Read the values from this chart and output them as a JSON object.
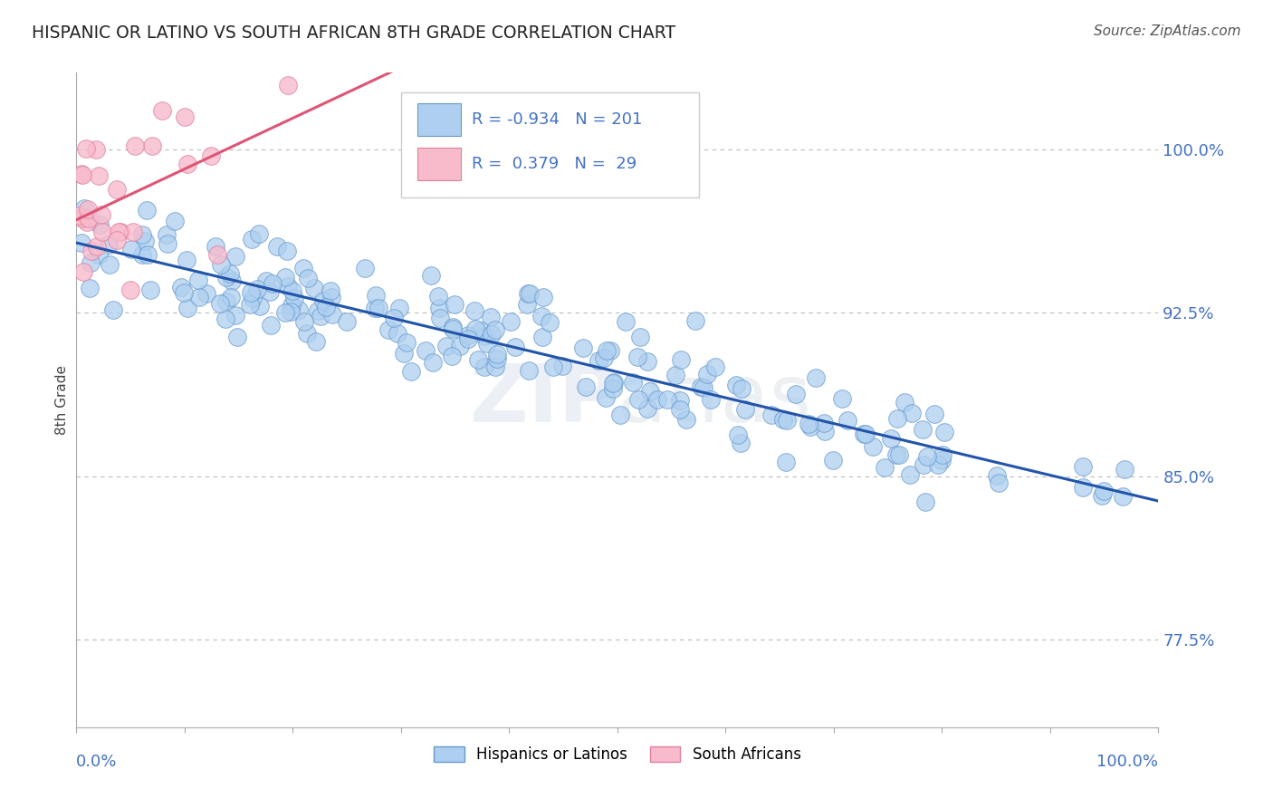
{
  "title": "HISPANIC OR LATINO VS SOUTH AFRICAN 8TH GRADE CORRELATION CHART",
  "source": "Source: ZipAtlas.com",
  "ylabel": "8th Grade",
  "ytick_labels": [
    "77.5%",
    "85.0%",
    "92.5%",
    "100.0%"
  ],
  "ytick_values": [
    0.775,
    0.85,
    0.925,
    1.0
  ],
  "xlim": [
    0.0,
    1.0
  ],
  "ylim": [
    0.735,
    1.035
  ],
  "legend_blue_r": "-0.934",
  "legend_blue_n": "201",
  "legend_pink_r": "0.379",
  "legend_pink_n": "29",
  "blue_color": "#AECFF0",
  "blue_edge_color": "#6699CC",
  "blue_line_color": "#2255AA",
  "pink_color": "#F7BBCC",
  "pink_edge_color": "#E080A0",
  "pink_line_color": "#DD5577",
  "watermark_zip": "ZIP",
  "watermark_atlas": "atlas",
  "background_color": "#FFFFFF",
  "grid_color": "#BBBBBB",
  "title_color": "#222222",
  "axis_label_color": "#4472C4",
  "legend_text_color": "#4472C4",
  "legend_n_color": "#4472C4",
  "source_color": "#555555"
}
